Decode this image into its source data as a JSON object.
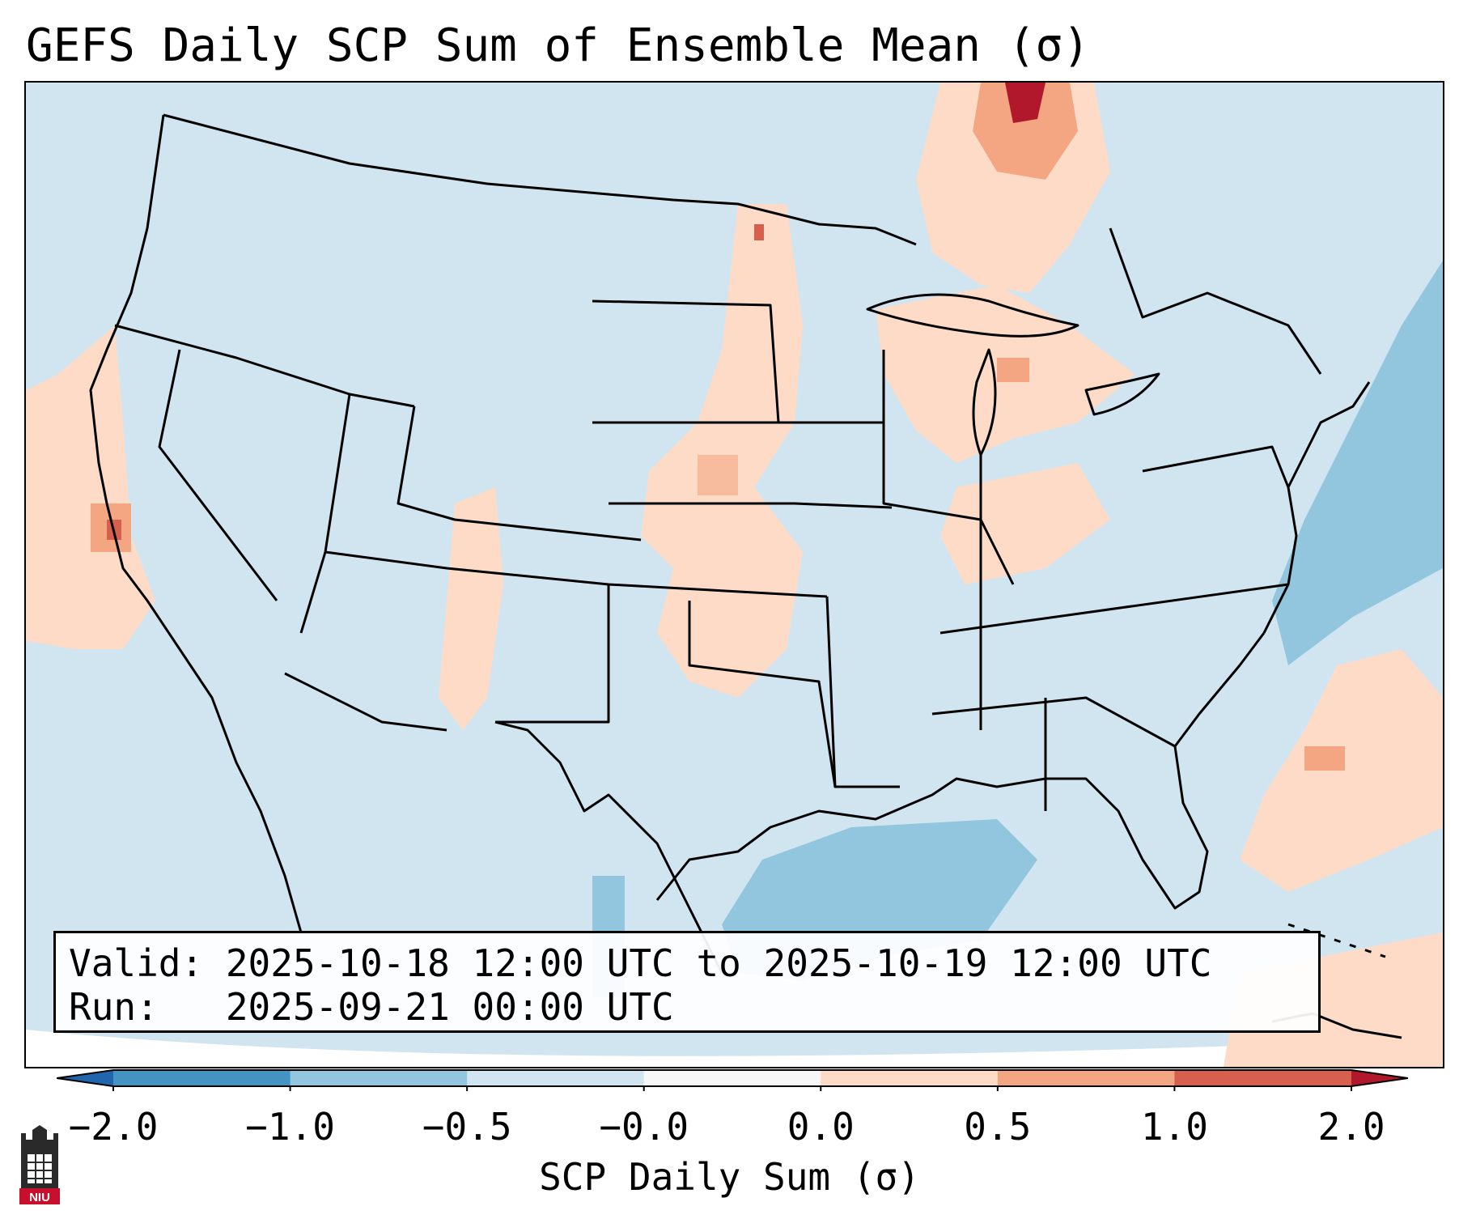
{
  "title": "GEFS Daily SCP Sum of Ensemble Mean (σ)",
  "info": {
    "valid_line": "Valid: 2025-10-18 12:00 UTC to 2025-10-19 12:00 UTC",
    "run_line": "Run:   2025-09-21 00:00 UTC"
  },
  "colorbar": {
    "label": "SCP Daily Sum (σ)",
    "ticks": [
      "−2.0",
      "−1.0",
      "−0.5",
      "−0.0",
      "0.0",
      "0.5",
      "1.0",
      "2.0"
    ],
    "colors": [
      "#4393c3",
      "#92c5de",
      "#d1e5f0",
      "#f7f7f7",
      "#fddbc7",
      "#f4a582",
      "#d6604d"
    ],
    "under_color": "#2166ac",
    "over_color": "#b2182b"
  },
  "colors": {
    "background": "#d1e5f0",
    "positive_low": "#fddbc7",
    "positive_mid": "#f4a582",
    "positive_high": "#d6604d",
    "extreme": "#b2182b",
    "negative_low": "#92c5de"
  },
  "logo": {
    "text": "NIU"
  }
}
